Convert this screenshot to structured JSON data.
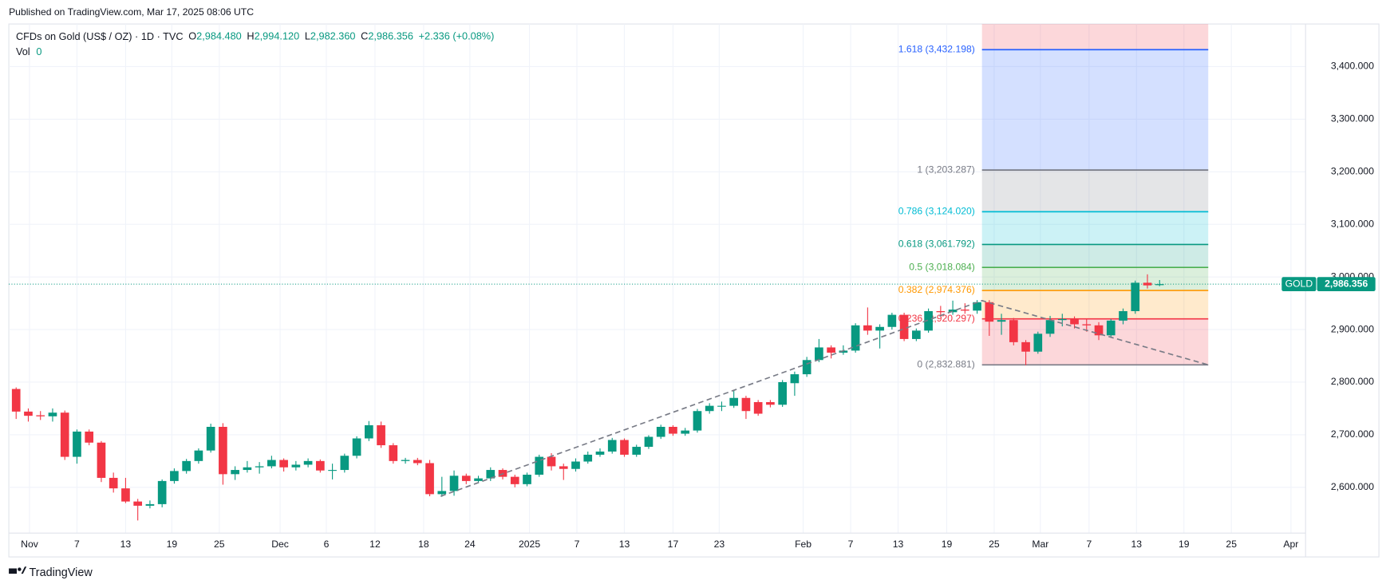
{
  "header": {
    "published": "Published on TradingView.com, Mar 17, 2025 08:06 UTC",
    "symbol": "CFDs on Gold (US$ / OZ) · 1D · TVC",
    "ohlc": [
      {
        "key": "O",
        "value": "2,984.480"
      },
      {
        "key": "H",
        "value": "2,994.120"
      },
      {
        "key": "L",
        "value": "2,982.360"
      },
      {
        "key": "C",
        "value": "2,986.356"
      }
    ],
    "change": "+2.336 (+0.08%)",
    "volume_label": "Vol",
    "volume": "0"
  },
  "chart_data": {
    "type": "candlestick",
    "open": [
      2787,
      2744,
      2737,
      2735,
      2742,
      2658,
      2706,
      2685,
      2618,
      2598,
      2573,
      2565,
      2568,
      2612,
      2631,
      2650,
      2670,
      2715,
      2625,
      2633,
      2638,
      2640,
      2652,
      2638,
      2643,
      2650,
      2632,
      2633,
      2660,
      2693,
      2718,
      2680,
      2650,
      2652,
      2646,
      2587,
      2593,
      2622,
      2612,
      2617,
      2633,
      2620,
      2606,
      2624,
      2658,
      2640,
      2635,
      2649,
      2662,
      2668,
      2690,
      2662,
      2677,
      2696,
      2715,
      2702,
      2708,
      2745,
      2755,
      2755,
      2770,
      2762,
      2762,
      2757,
      2798,
      2815,
      2842,
      2866,
      2856,
      2860,
      2908,
      2898,
      2905,
      2928,
      2882,
      2898,
      2935,
      2933,
      2938,
      2936,
      2952,
      2915,
      2918,
      2876,
      2858,
      2892,
      2918,
      2920,
      2910,
      2908,
      2889,
      2917,
      2935,
      2989,
      2984.48
    ],
    "high": [
      2790,
      2750,
      2745,
      2750,
      2746,
      2710,
      2710,
      2688,
      2628,
      2618,
      2578,
      2575,
      2615,
      2636,
      2654,
      2674,
      2721,
      2722,
      2640,
      2650,
      2648,
      2660,
      2655,
      2650,
      2655,
      2653,
      2645,
      2664,
      2697,
      2726,
      2725,
      2684,
      2656,
      2656,
      2652,
      2620,
      2632,
      2626,
      2622,
      2638,
      2636,
      2624,
      2628,
      2662,
      2665,
      2645,
      2655,
      2668,
      2674,
      2694,
      2693,
      2681,
      2699,
      2719,
      2718,
      2713,
      2749,
      2760,
      2763,
      2785,
      2774,
      2766,
      2766,
      2804,
      2820,
      2848,
      2882,
      2870,
      2870,
      2912,
      2942,
      2910,
      2932,
      2932,
      2902,
      2940,
      2945,
      2955,
      2950,
      2956,
      2956,
      2930,
      2922,
      2880,
      2896,
      2926,
      2930,
      2925,
      2920,
      2914,
      2920,
      2940,
      2993,
      3005,
      2994.12
    ],
    "low": [
      2730,
      2725,
      2728,
      2725,
      2652,
      2645,
      2680,
      2610,
      2590,
      2570,
      2537,
      2560,
      2562,
      2607,
      2626,
      2645,
      2666,
      2605,
      2614,
      2628,
      2626,
      2636,
      2630,
      2632,
      2638,
      2628,
      2615,
      2628,
      2655,
      2688,
      2675,
      2645,
      2645,
      2642,
      2583,
      2582,
      2584,
      2606,
      2608,
      2612,
      2615,
      2600,
      2602,
      2620,
      2632,
      2614,
      2630,
      2645,
      2658,
      2664,
      2658,
      2658,
      2673,
      2692,
      2698,
      2698,
      2704,
      2740,
      2745,
      2751,
      2730,
      2736,
      2752,
      2753,
      2774,
      2810,
      2838,
      2845,
      2852,
      2856,
      2890,
      2864,
      2900,
      2878,
      2878,
      2894,
      2925,
      2928,
      2930,
      2930,
      2888,
      2890,
      2870,
      2832,
      2854,
      2886,
      2906,
      2902,
      2896,
      2880,
      2885,
      2910,
      2930,
      2978,
      2982.36
    ],
    "close": [
      2744,
      2736,
      2735,
      2742,
      2658,
      2706,
      2685,
      2618,
      2598,
      2573,
      2565,
      2568,
      2612,
      2631,
      2650,
      2670,
      2715,
      2625,
      2633,
      2638,
      2640,
      2652,
      2638,
      2643,
      2650,
      2632,
      2633,
      2660,
      2693,
      2718,
      2680,
      2650,
      2652,
      2646,
      2587,
      2593,
      2622,
      2612,
      2617,
      2633,
      2620,
      2606,
      2624,
      2658,
      2640,
      2635,
      2649,
      2662,
      2668,
      2690,
      2662,
      2677,
      2696,
      2715,
      2702,
      2708,
      2745,
      2755,
      2755,
      2770,
      2745,
      2740,
      2757,
      2800,
      2815,
      2842,
      2866,
      2856,
      2860,
      2908,
      2898,
      2905,
      2928,
      2882,
      2898,
      2935,
      2933,
      2938,
      2936,
      2952,
      2915,
      2918,
      2876,
      2858,
      2892,
      2918,
      2920,
      2910,
      2908,
      2889,
      2917,
      2935,
      2989,
      2984,
      2986.356
    ],
    "up_color": "#089981",
    "down_color": "#f23645",
    "xlim": [
      -0.6,
      106
    ],
    "xticks": [
      {
        "value": 1.1,
        "label": "Nov"
      },
      {
        "value": 5,
        "label": "7"
      },
      {
        "value": 9,
        "label": "13"
      },
      {
        "value": 12.8,
        "label": "19"
      },
      {
        "value": 16.7,
        "label": "25"
      },
      {
        "value": 21.7,
        "label": "Dec"
      },
      {
        "value": 25.5,
        "label": "6"
      },
      {
        "value": 29.5,
        "label": "12"
      },
      {
        "value": 33.5,
        "label": "18"
      },
      {
        "value": 37.3,
        "label": "24"
      },
      {
        "value": 42.2,
        "label": "2025"
      },
      {
        "value": 46.1,
        "label": "7"
      },
      {
        "value": 50,
        "label": "13"
      },
      {
        "value": 54,
        "label": "17"
      },
      {
        "value": 57.8,
        "label": "23"
      },
      {
        "value": 64.7,
        "label": "Feb"
      },
      {
        "value": 68.6,
        "label": "7"
      },
      {
        "value": 72.5,
        "label": "13"
      },
      {
        "value": 76.5,
        "label": "19"
      },
      {
        "value": 80.4,
        "label": "25"
      },
      {
        "value": 84.2,
        "label": "Mar"
      },
      {
        "value": 88.2,
        "label": "7"
      },
      {
        "value": 92.1,
        "label": "13"
      },
      {
        "value": 96,
        "label": "19"
      },
      {
        "value": 99.9,
        "label": "25"
      },
      {
        "value": 104.8,
        "label": "Apr"
      }
    ],
    "ylim": [
      2513,
      3481
    ],
    "yticks": [
      {
        "value": 2600,
        "label": "2,600.000"
      },
      {
        "value": 2700,
        "label": "2,700.000"
      },
      {
        "value": 2800,
        "label": "2,800.000"
      },
      {
        "value": 2900,
        "label": "2,900.000"
      },
      {
        "value": 3000,
        "label": "3,000.000"
      },
      {
        "value": 3100,
        "label": "3,100.000"
      },
      {
        "value": 3200,
        "label": "3,200.000"
      },
      {
        "value": 3300,
        "label": "3,300.000"
      },
      {
        "value": 3400,
        "label": "3,400.000"
      }
    ],
    "grid": true,
    "fib": {
      "x": [
        79.4,
        98
      ],
      "levels": [
        {
          "value": 2832.881,
          "label": "0 (2,832.881)",
          "color": "#787b86",
          "fill": "rgba(242,54,69,0.2)"
        },
        {
          "value": 2920.297,
          "label": "0.236 (2,920.297)",
          "color": "#f23645",
          "fill": "rgba(255,152,0,0.2)"
        },
        {
          "value": 2974.376,
          "label": "0.382 (2,974.376)",
          "color": "#ff9800",
          "fill": "rgba(76,175,80,0.2)"
        },
        {
          "value": 3018.084,
          "label": "0.5 (3,018.084)",
          "color": "#4caf50",
          "fill": "rgba(8,153,129,0.2)"
        },
        {
          "value": 3061.792,
          "label": "0.618 (3,061.792)",
          "color": "#089981",
          "fill": "rgba(0,188,212,0.2)"
        },
        {
          "value": 3124.02,
          "label": "0.786 (3,124.020)",
          "color": "#00bcd4",
          "fill": "rgba(120,123,134,0.2)"
        },
        {
          "value": 3203.287,
          "label": "1 (3,203.287)",
          "color": "#787b86",
          "fill": "rgba(41,98,255,0.2)"
        },
        {
          "value": 3432.198,
          "label": "1.618 (3,432.198)",
          "color": "#2962ff",
          "fill": "rgba(242,54,69,0.2)"
        }
      ]
    },
    "trend": {
      "x": [
        34.9,
        79.4,
        98
      ],
      "y": [
        2583,
        2955,
        2832.881
      ]
    },
    "last_price": {
      "symbol": "GOLD",
      "value": 2986.356,
      "label": "2,986.356",
      "color": "#089981"
    }
  },
  "footer": {
    "brand": "TradingView"
  }
}
